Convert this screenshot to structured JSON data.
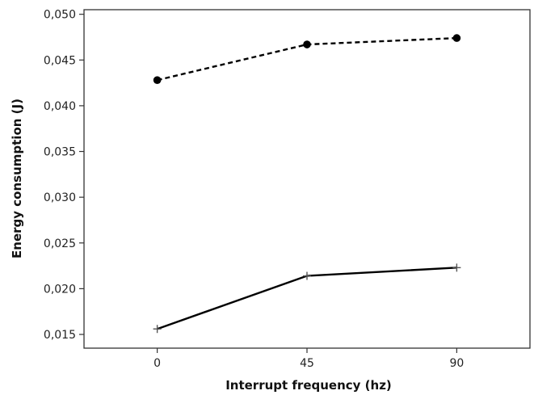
{
  "chart_data": {
    "type": "line",
    "title": "",
    "xlabel": "Interrupt frequency (hz)",
    "ylabel": "Energy consumption (J)",
    "x": [
      0,
      45,
      90
    ],
    "x_tick_labels": [
      "0",
      "45",
      "90"
    ],
    "xlim": [
      -22,
      112
    ],
    "ylim": [
      0.0135,
      0.0505
    ],
    "y_ticks": [
      0.015,
      0.02,
      0.025,
      0.03,
      0.035,
      0.04,
      0.045,
      0.05
    ],
    "y_tick_labels": [
      "0,015",
      "0,020",
      "0,025",
      "0,030",
      "0,035",
      "0,040",
      "0,045",
      "0,050"
    ],
    "grid": false,
    "legend": "none",
    "series": [
      {
        "values": [
          0.0428,
          0.0467,
          0.0474
        ],
        "line_style": "dashed",
        "marker": "circle",
        "color": "#000000"
      },
      {
        "values": [
          0.0156,
          0.0214,
          0.0223
        ],
        "line_style": "solid",
        "marker": "plus",
        "color": "#000000"
      }
    ]
  }
}
